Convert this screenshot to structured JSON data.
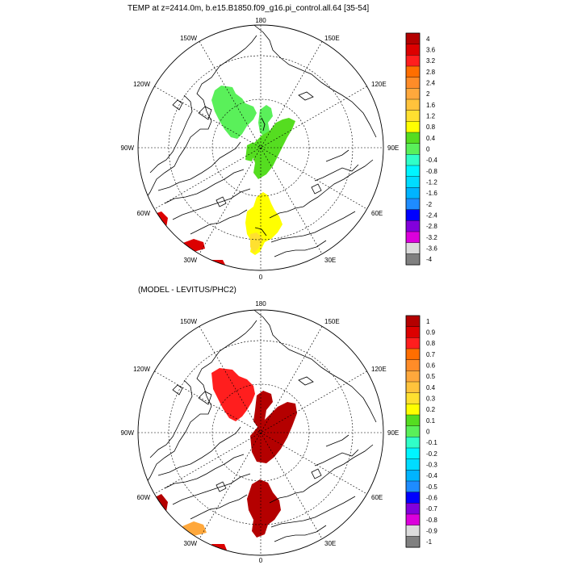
{
  "plots": [
    {
      "id": "temp",
      "title": "TEMP at z=2414.0m, b.e15.B1850.f09_g16.pi_control.all.64 [35-54]",
      "lon_labels": [
        "180",
        "150E",
        "120E",
        "90E",
        "60E",
        "30E",
        "0",
        "30W",
        "60W",
        "90W",
        "120W",
        "150W"
      ],
      "colorbar": {
        "labels": [
          "4",
          "3.6",
          "3.2",
          "2.8",
          "2.4",
          "2",
          "1.6",
          "1.2",
          "0.8",
          "0.4",
          "0",
          "-0.4",
          "-0.8",
          "-1.2",
          "-1.6",
          "-2",
          "-2.4",
          "-2.8",
          "-3.2",
          "-3.6",
          "-4"
        ],
        "colors": [
          "#b40000",
          "#dc0000",
          "#ff1e1e",
          "#ff6e00",
          "#ff8c28",
          "#ffa83c",
          "#ffc33c",
          "#ffe030",
          "#ffff00",
          "#55dd20",
          "#5af05a",
          "#30ffc8",
          "#00f5ff",
          "#00dcff",
          "#00b4ff",
          "#1e8cff",
          "#0000ff",
          "#8200dc",
          "#dc00dc",
          "#dcdcdc",
          "#808080"
        ]
      }
    },
    {
      "id": "diff",
      "title": "(MODEL - LEVITUS/PHC2)",
      "lon_labels": [
        "180",
        "150E",
        "120E",
        "90E",
        "60E",
        "30E",
        "0",
        "30W",
        "60W",
        "90W",
        "120W",
        "150W"
      ],
      "colorbar": {
        "labels": [
          "1",
          "0.9",
          "0.8",
          "0.7",
          "0.6",
          "0.5",
          "0.4",
          "0.3",
          "0.2",
          "0.1",
          "0",
          "-0.1",
          "-0.2",
          "-0.3",
          "-0.4",
          "-0.5",
          "-0.6",
          "-0.7",
          "-0.8",
          "-0.9",
          "-1"
        ],
        "colors": [
          "#b40000",
          "#dc0000",
          "#ff1e1e",
          "#ff6e00",
          "#ff8c28",
          "#ffa83c",
          "#ffc33c",
          "#ffe030",
          "#ffff00",
          "#55dd20",
          "#5af05a",
          "#30ffc8",
          "#00f5ff",
          "#00dcff",
          "#00b4ff",
          "#1e8cff",
          "#0000ff",
          "#8200dc",
          "#dc00dc",
          "#dcdcdc",
          "#808080"
        ]
      }
    }
  ]
}
